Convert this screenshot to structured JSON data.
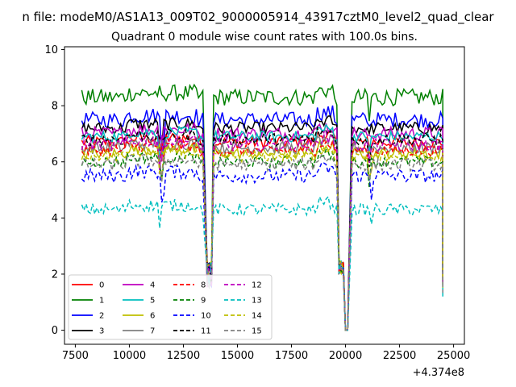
{
  "chart_data": {
    "type": "line",
    "suptitle": "n file: modeM0/AS1A13_009T02_9000005914_43917cztM0_level2_quad_clear",
    "title": "Quadrant 0 module wise count rates with 100.0s bins.",
    "xlabel": "",
    "ylabel": "",
    "x_offset_text": "+4.374e8",
    "xlim": [
      7000,
      25500
    ],
    "ylim": [
      -0.5,
      10.1
    ],
    "xticks": [
      7500,
      10000,
      12500,
      15000,
      17500,
      20000,
      22500,
      25000
    ],
    "xtick_labels": [
      "7500",
      "10000",
      "12500",
      "15000",
      "17500",
      "20000",
      "22500",
      "25000"
    ],
    "yticks": [
      0,
      2,
      4,
      6,
      8,
      10
    ],
    "ytick_labels": [
      "0",
      "2",
      "4",
      "6",
      "8",
      "10"
    ],
    "grid": false,
    "legend": {
      "placement": "lower-left",
      "columns": 4
    },
    "x_segments": [
      [
        7800,
        13400
      ],
      [
        13600,
        13800
      ],
      [
        13900,
        19600
      ],
      [
        19700,
        19900
      ],
      [
        20000,
        20100
      ],
      [
        20300,
        24500
      ]
    ],
    "series": [
      {
        "name": "0",
        "color": "#ff0000",
        "style": "solid",
        "level": 6.7,
        "noise": 0.22,
        "dip": 1.0
      },
      {
        "name": "1",
        "color": "#008000",
        "style": "solid",
        "level": 8.3,
        "noise": 0.3,
        "dip": 1.2
      },
      {
        "name": "2",
        "color": "#0000ff",
        "style": "solid",
        "level": 7.5,
        "noise": 0.28,
        "dip": 1.2
      },
      {
        "name": "3",
        "color": "#000000",
        "style": "solid",
        "level": 7.2,
        "noise": 0.22,
        "dip": 1.1
      },
      {
        "name": "4",
        "color": "#bf00bf",
        "style": "solid",
        "level": 7.0,
        "noise": 0.25,
        "dip": 1.0
      },
      {
        "name": "5",
        "color": "#00bfbf",
        "style": "solid",
        "level": 6.9,
        "noise": 0.2,
        "dip": 0.9
      },
      {
        "name": "6",
        "color": "#bfbf00",
        "style": "solid",
        "level": 6.3,
        "noise": 0.2,
        "dip": 0.9
      },
      {
        "name": "7",
        "color": "#808080",
        "style": "solid",
        "level": 6.5,
        "noise": 0.22,
        "dip": 0.9
      },
      {
        "name": "8",
        "color": "#ff0000",
        "style": "dashed",
        "level": 6.4,
        "noise": 0.2,
        "dip": 1.0
      },
      {
        "name": "9",
        "color": "#008000",
        "style": "dashed",
        "level": 6.0,
        "noise": 0.2,
        "dip": 0.9
      },
      {
        "name": "10",
        "color": "#0000ff",
        "style": "dashed",
        "level": 5.5,
        "noise": 0.25,
        "dip": 0.9
      },
      {
        "name": "11",
        "color": "#000000",
        "style": "dashed",
        "level": 6.8,
        "noise": 0.22,
        "dip": 1.0
      },
      {
        "name": "12",
        "color": "#bf00bf",
        "style": "dashed",
        "level": 6.6,
        "noise": 0.22,
        "dip": 1.0
      },
      {
        "name": "13",
        "color": "#00bfbf",
        "style": "dashed",
        "level": 4.3,
        "noise": 0.22,
        "dip": 0.8
      },
      {
        "name": "14",
        "color": "#bfbf00",
        "style": "dashed",
        "level": 6.2,
        "noise": 0.2,
        "dip": 0.9
      },
      {
        "name": "15",
        "color": "#808080",
        "style": "dashed",
        "level": 5.9,
        "noise": 0.22,
        "dip": 0.9
      }
    ]
  }
}
